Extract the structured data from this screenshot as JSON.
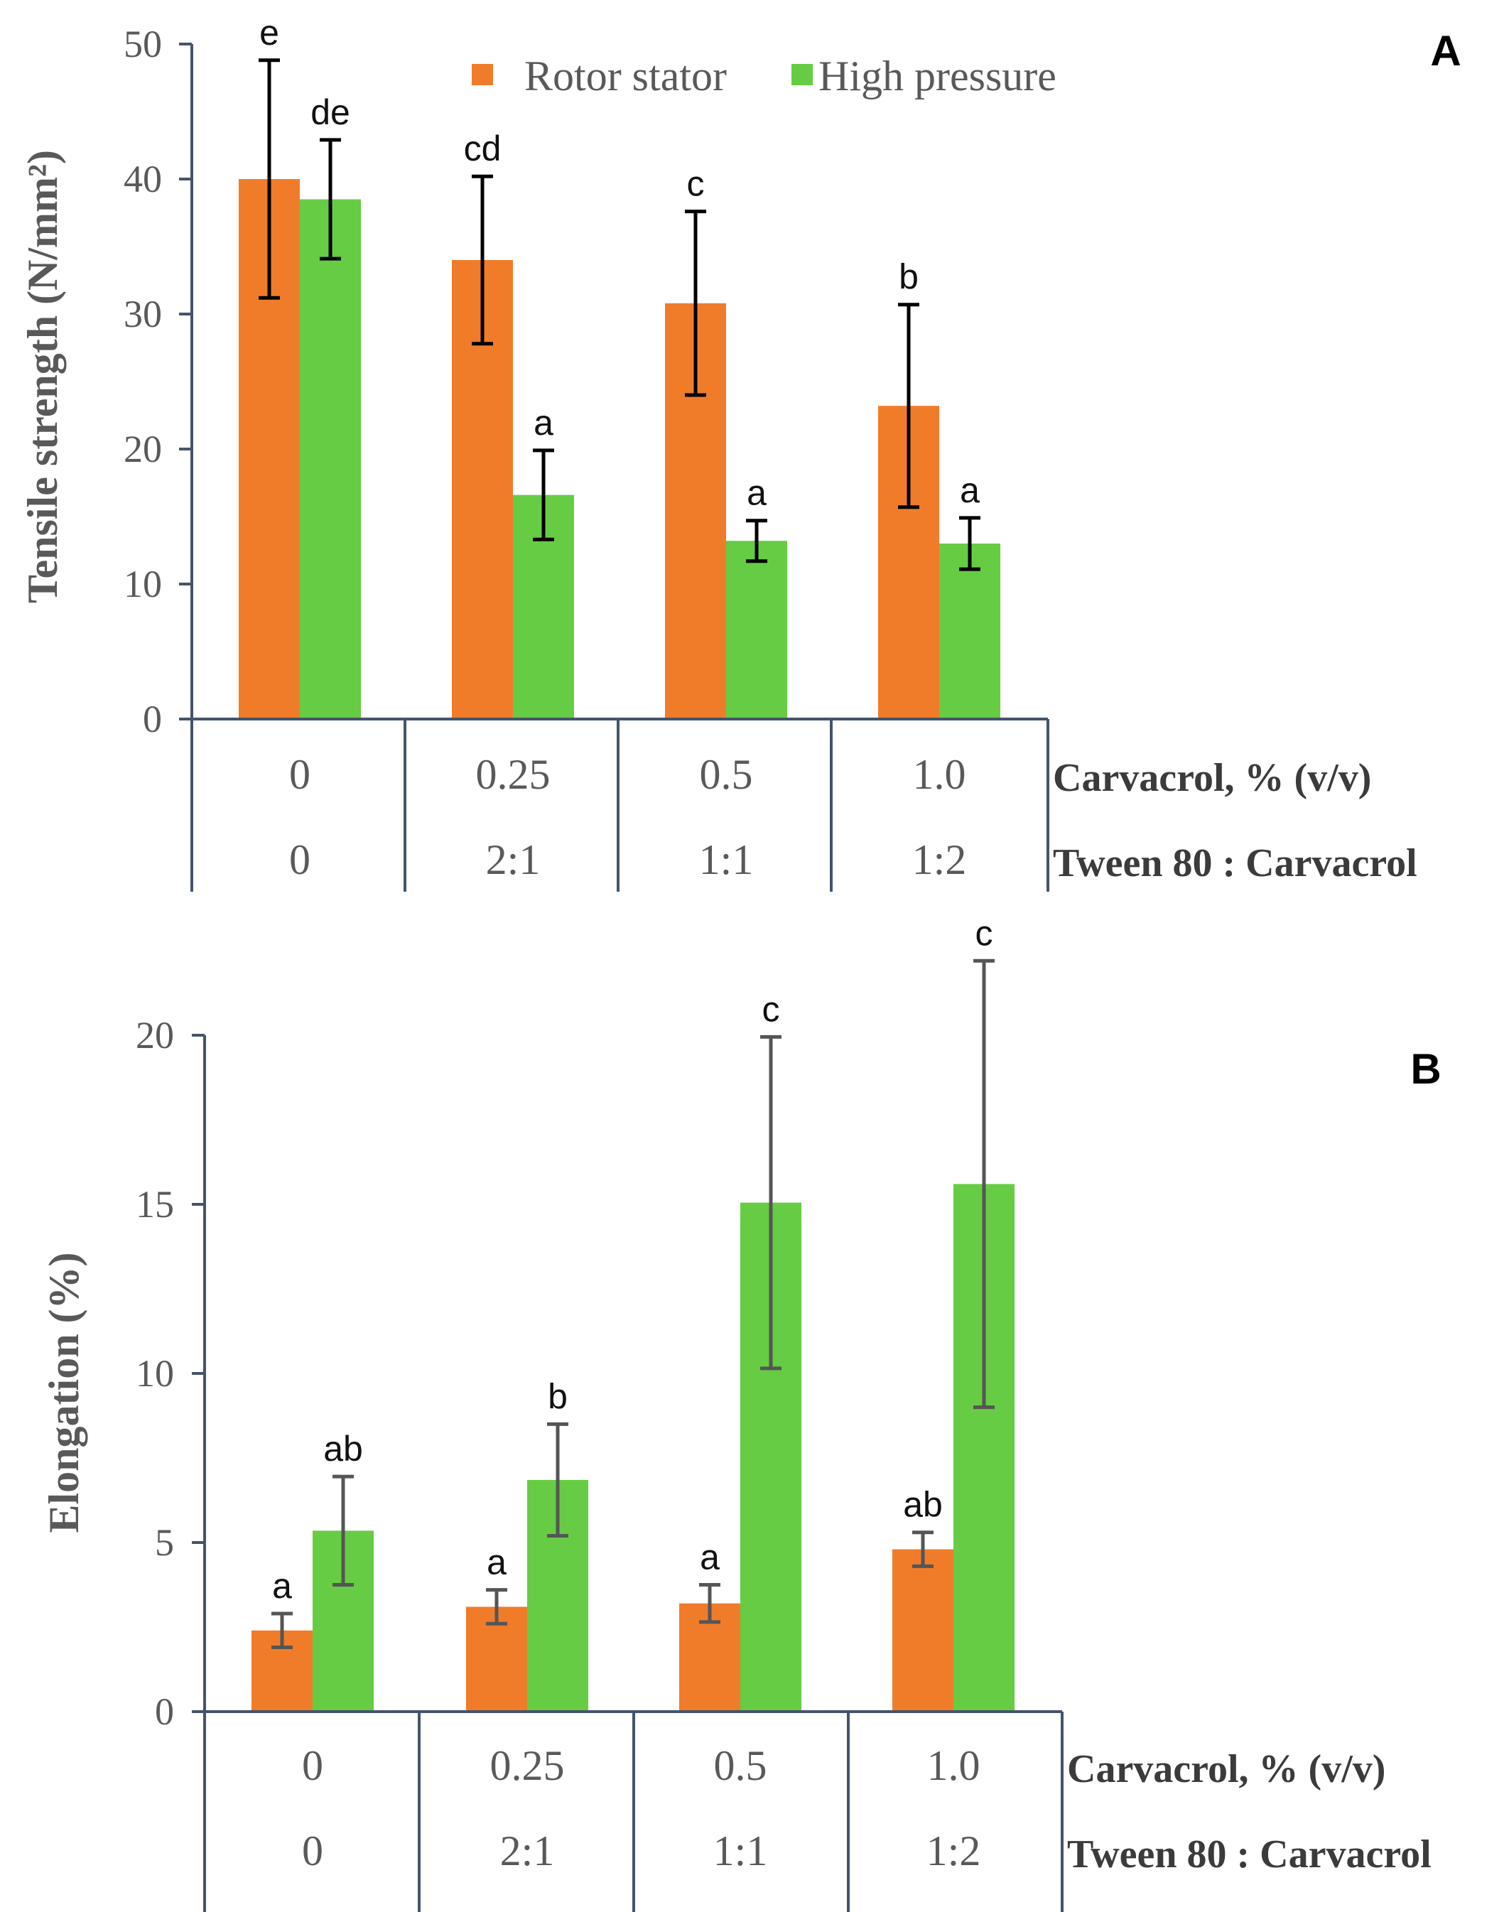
{
  "legend": {
    "rotor_stator": "Rotor stator",
    "high_pressure": "High pressure"
  },
  "colors": {
    "rotor_stator": "#f07c2a",
    "high_pressure": "#66cc44",
    "axis": "#44546a",
    "errbar_a": "#000000",
    "errbar_b": "#555555"
  },
  "chart_data": [
    {
      "type": "bar",
      "panel_label": "A",
      "ylabel": "Tensile strength (N/mm²)",
      "ylim": [
        0,
        50
      ],
      "yticks": [
        0,
        10,
        20,
        30,
        40,
        50
      ],
      "categories": [
        "0",
        "0.25",
        "0.5",
        "1.0"
      ],
      "secondary_categories": [
        "0",
        "2:1",
        "1:1",
        "1:2"
      ],
      "category_row_labels": [
        "Carvacrol, % (v/v)",
        "Tween 80 : Carvacrol"
      ],
      "legend_position": "top-center",
      "series": [
        {
          "name": "Rotor stator",
          "values": [
            40.0,
            34.0,
            30.8,
            23.2
          ],
          "errors": [
            8.8,
            6.2,
            6.8,
            7.5
          ],
          "letters": [
            "e",
            "cd",
            "c",
            "b"
          ]
        },
        {
          "name": "High pressure",
          "values": [
            38.5,
            16.6,
            13.2,
            13.0
          ],
          "errors": [
            4.4,
            3.3,
            1.5,
            1.9
          ],
          "letters": [
            "de",
            "a",
            "a",
            "a"
          ]
        }
      ]
    },
    {
      "type": "bar",
      "panel_label": "B",
      "ylabel": "Elongation (%)",
      "ylim": [
        0,
        20
      ],
      "yticks": [
        0,
        5,
        10,
        15,
        20
      ],
      "categories": [
        "0",
        "0.25",
        "0.5",
        "1.0"
      ],
      "secondary_categories": [
        "0",
        "2:1",
        "1:1",
        "1:2"
      ],
      "category_row_labels": [
        "Carvacrol, % (v/v)",
        "Tween 80 : Carvacrol"
      ],
      "series": [
        {
          "name": "Rotor stator",
          "values": [
            2.4,
            3.1,
            3.2,
            4.8
          ],
          "errors": [
            0.5,
            0.5,
            0.55,
            0.5
          ],
          "letters": [
            "a",
            "a",
            "a",
            "ab"
          ]
        },
        {
          "name": "High pressure",
          "values": [
            5.35,
            6.85,
            15.05,
            15.6
          ],
          "errors": [
            1.6,
            1.65,
            4.9,
            6.6
          ],
          "letters": [
            "ab",
            "b",
            "c",
            "c"
          ]
        }
      ]
    }
  ]
}
